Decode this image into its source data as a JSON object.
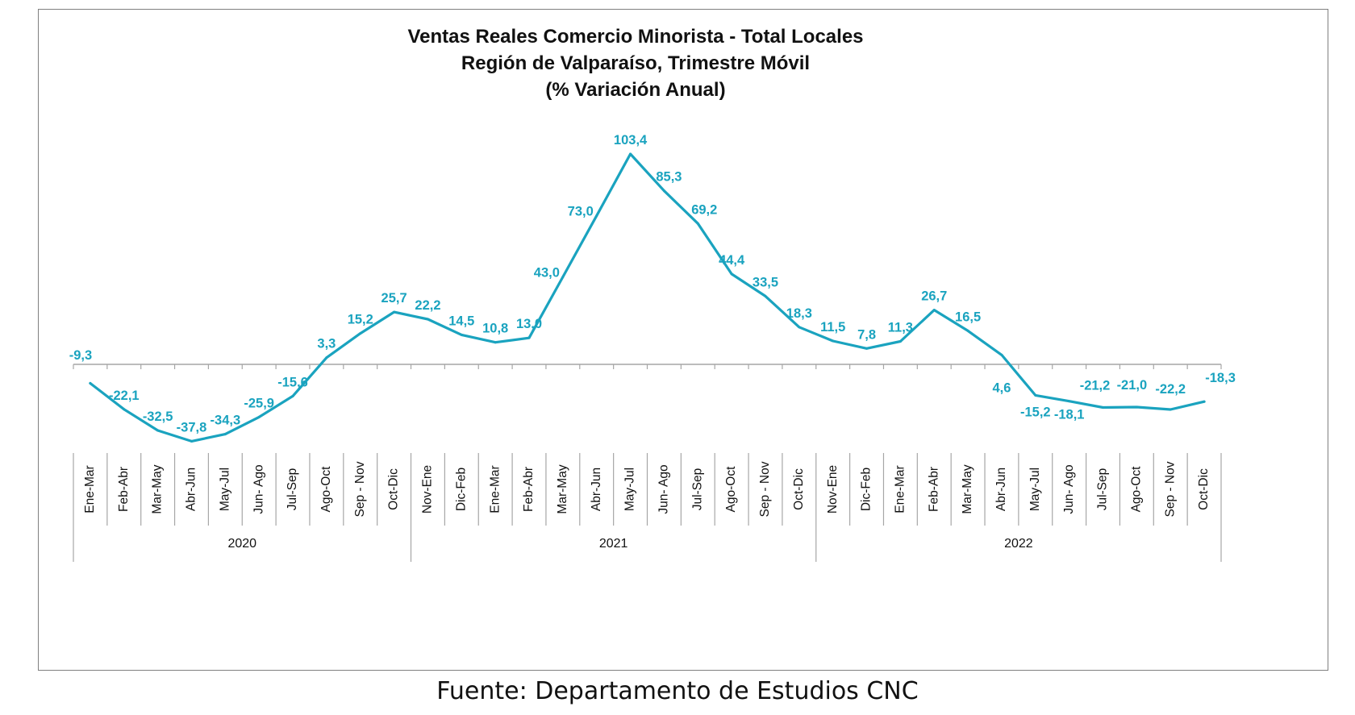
{
  "chart_data": {
    "type": "line",
    "title": [
      "Ventas Reales Comercio Minorista - Total Locales",
      "Región de Valparaíso, Trimestre Móvil",
      "(% Variación Anual)"
    ],
    "categories": [
      "Ene-Mar",
      "Feb-Abr",
      "Mar-May",
      "Abr-Jun",
      "May-Jul",
      "Jun- Ago",
      "Jul-Sep",
      "Ago-Oct",
      "Sep - Nov",
      "Oct-Dic",
      "Nov-Ene",
      "Dic-Feb",
      "Ene-Mar",
      "Feb-Abr",
      "Mar-May",
      "Abr-Jun",
      "May-Jul",
      "Jun- Ago",
      "Jul-Sep",
      "Ago-Oct",
      "Sep - Nov",
      "Oct-Dic",
      "Nov-Ene",
      "Dic-Feb",
      "Ene-Mar",
      "Feb-Abr",
      "Mar-May",
      "Abr-Jun",
      "May-Jul",
      "Jun- Ago",
      "Jul-Sep",
      "Ago-Oct",
      "Sep - Nov",
      "Oct-Dic"
    ],
    "year_groups": [
      {
        "label": "2020",
        "start": 0,
        "end": 9
      },
      {
        "label": "2021",
        "start": 10,
        "end": 21
      },
      {
        "label": "2022",
        "start": 22,
        "end": 33
      }
    ],
    "series": [
      {
        "values": [
          -9.3,
          -22.1,
          -32.5,
          -37.8,
          -34.3,
          -25.9,
          -15.6,
          3.3,
          15.2,
          25.7,
          22.2,
          14.5,
          10.8,
          13.0,
          43.0,
          73.0,
          103.4,
          85.3,
          69.2,
          44.4,
          33.5,
          18.3,
          11.5,
          7.8,
          11.3,
          26.7,
          16.5,
          4.6,
          -15.2,
          -18.1,
          -21.2,
          -21.0,
          -22.2,
          -18.3
        ],
        "data_labels": [
          "-9,3",
          "-22,1",
          "-32,5",
          "-37,8",
          "-34,3",
          "-25,9",
          "-15,6",
          "3,3",
          "15,2",
          "25,7",
          "22,2",
          "14,5",
          "10,8",
          "13,0",
          "43,0",
          "73,0",
          "103,4",
          "85,3",
          "69,2",
          "44,4",
          "33,5",
          "18,3",
          "11,5",
          "7,8",
          "11,3",
          "26,7",
          "16,5",
          "4,6",
          "-15,2",
          "-18,1",
          "-21,2",
          "-21,0",
          "-22,2",
          "-18,3"
        ]
      }
    ],
    "line_color": "#1aa3bf",
    "axis_color": "#a6a6a6",
    "ylim": [
      -45,
      115
    ],
    "grid": false,
    "legend": "none"
  },
  "source_note": "Fuente: Departamento de Estudios CNC"
}
